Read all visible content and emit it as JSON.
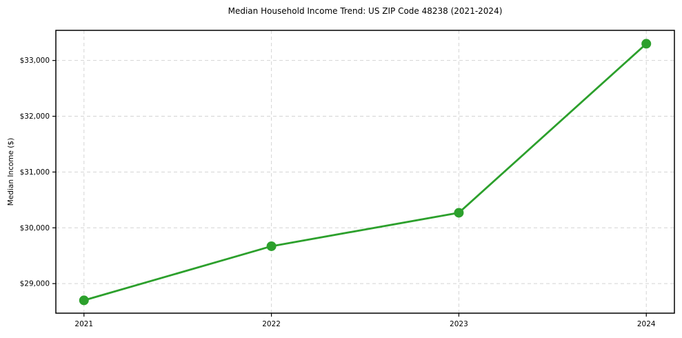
{
  "chart_data": {
    "type": "line",
    "title": "Median Household Income Trend: US ZIP Code 48238 (2021-2024)",
    "xlabel": "",
    "ylabel": "Median Income ($)",
    "x": [
      2021,
      2022,
      2023,
      2024
    ],
    "x_tick_labels": [
      "2021",
      "2022",
      "2023",
      "2024"
    ],
    "series": [
      {
        "color": "#2ca02c",
        "marker": "circle",
        "values": [
          28700,
          29670,
          30270,
          33300
        ]
      }
    ],
    "y_ticks": [
      {
        "value": 29000,
        "label": "$29,000"
      },
      {
        "value": 30000,
        "label": "$30,000"
      },
      {
        "value": 31000,
        "label": "$31,000"
      },
      {
        "value": 32000,
        "label": "$32,000"
      },
      {
        "value": 33000,
        "label": "$33,000"
      }
    ],
    "xlim": [
      2020.85,
      2024.15
    ],
    "ylim": [
      28470,
      33540
    ],
    "grid": true,
    "grid_style": "dashed",
    "grid_color": "#d4d4d4",
    "spine_color": "#000000",
    "tick_color": "#000000",
    "background_color": "#ffffff",
    "legend_position": "none"
  }
}
